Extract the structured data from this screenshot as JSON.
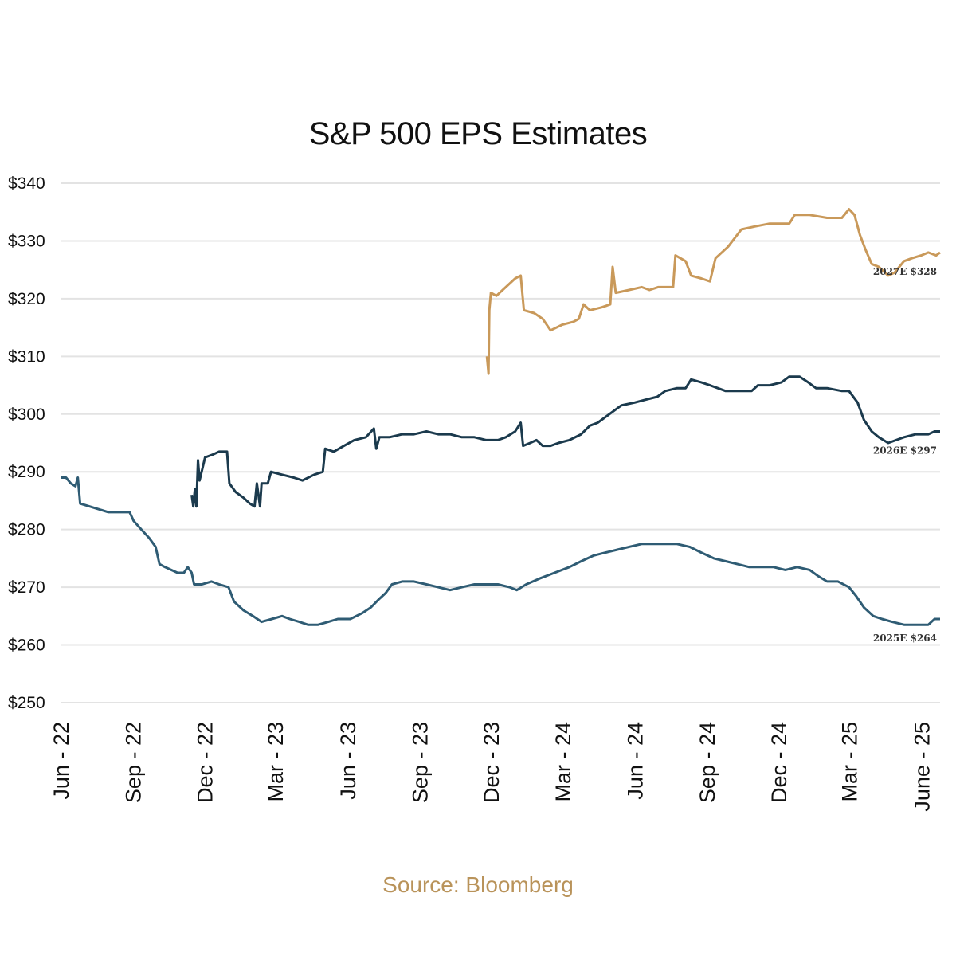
{
  "colors": {
    "series_2027": "#C9995A",
    "series_2026": "#1B3A4D",
    "series_2025": "#2F5C74",
    "grid": "#E3E3E3",
    "source": "#B9935A"
  },
  "chart_data": {
    "type": "line",
    "title": "S&P 500 EPS Estimates",
    "source": "Source: Bloomberg",
    "xlabel": "",
    "ylabel": "",
    "ylim": [
      250,
      340
    ],
    "xlim": [
      "2022-06-01",
      "2025-06-25"
    ],
    "y_ticks": [
      250,
      260,
      270,
      280,
      290,
      300,
      310,
      320,
      330,
      340
    ],
    "y_tick_labels": [
      "$250",
      "$260",
      "$270",
      "$280",
      "$290",
      "$300",
      "$310",
      "$320",
      "$330",
      "$340"
    ],
    "x_ticks": [
      "2022-06-01",
      "2022-09-01",
      "2022-12-01",
      "2023-03-01",
      "2023-06-01",
      "2023-09-01",
      "2023-12-01",
      "2024-03-01",
      "2024-06-01",
      "2024-09-01",
      "2024-12-01",
      "2025-03-01",
      "2025-06-01"
    ],
    "x_tick_labels": [
      "Jun - 22",
      "Sep - 22",
      "Dec - 22",
      "Mar - 23",
      "Jun - 23",
      "Sep - 23",
      "Dec - 23",
      "Mar - 24",
      "Jun - 24",
      "Sep - 24",
      "Dec - 24",
      "Mar - 25",
      "June - 25"
    ],
    "grid": true,
    "series": [
      {
        "label": "2027E $328",
        "color_key": "series_2027",
        "points": [
          [
            "2023-11-26",
            310
          ],
          [
            "2023-11-28",
            307
          ],
          [
            "2023-11-29",
            318
          ],
          [
            "2023-12-01",
            321
          ],
          [
            "2023-12-08",
            320.5
          ],
          [
            "2023-12-20",
            322
          ],
          [
            "2024-01-01",
            323.5
          ],
          [
            "2024-01-08",
            324
          ],
          [
            "2024-01-12",
            318
          ],
          [
            "2024-01-25",
            317.5
          ],
          [
            "2024-02-05",
            316.5
          ],
          [
            "2024-02-15",
            314.5
          ],
          [
            "2024-03-01",
            315.5
          ],
          [
            "2024-03-15",
            316
          ],
          [
            "2024-03-22",
            316.5
          ],
          [
            "2024-03-28",
            319
          ],
          [
            "2024-04-05",
            318
          ],
          [
            "2024-04-20",
            318.5
          ],
          [
            "2024-05-01",
            319
          ],
          [
            "2024-05-04",
            325.5
          ],
          [
            "2024-05-08",
            321
          ],
          [
            "2024-05-25",
            321.5
          ],
          [
            "2024-06-10",
            322
          ],
          [
            "2024-06-20",
            321.5
          ],
          [
            "2024-07-01",
            322
          ],
          [
            "2024-07-20",
            322
          ],
          [
            "2024-07-23",
            327.5
          ],
          [
            "2024-08-05",
            326.5
          ],
          [
            "2024-08-12",
            324
          ],
          [
            "2024-08-25",
            323.5
          ],
          [
            "2024-09-05",
            323
          ],
          [
            "2024-09-12",
            327
          ],
          [
            "2024-09-28",
            329
          ],
          [
            "2024-10-15",
            332
          ],
          [
            "2024-11-01",
            332.5
          ],
          [
            "2024-11-20",
            333
          ],
          [
            "2024-12-15",
            333
          ],
          [
            "2024-12-22",
            334.5
          ],
          [
            "2025-01-10",
            334.5
          ],
          [
            "2025-02-01",
            334
          ],
          [
            "2025-02-20",
            334
          ],
          [
            "2025-03-01",
            335.5
          ],
          [
            "2025-03-08",
            334.5
          ],
          [
            "2025-03-15",
            331
          ],
          [
            "2025-03-22",
            328.5
          ],
          [
            "2025-03-30",
            326
          ],
          [
            "2025-04-08",
            325.5
          ],
          [
            "2025-04-20",
            324
          ],
          [
            "2025-04-28",
            324.5
          ],
          [
            "2025-05-10",
            326.5
          ],
          [
            "2025-05-20",
            327
          ],
          [
            "2025-06-01",
            327.5
          ],
          [
            "2025-06-10",
            328
          ],
          [
            "2025-06-20",
            327.5
          ],
          [
            "2025-06-25",
            328
          ]
        ]
      },
      {
        "label": "2026E $297",
        "color_key": "series_2026",
        "points": [
          [
            "2022-11-15",
            286
          ],
          [
            "2022-11-17",
            284
          ],
          [
            "2022-11-19",
            287
          ],
          [
            "2022-11-21",
            284
          ],
          [
            "2022-11-23",
            292
          ],
          [
            "2022-11-25",
            288.5
          ],
          [
            "2022-12-02",
            292.5
          ],
          [
            "2022-12-12",
            293
          ],
          [
            "2022-12-20",
            293.5
          ],
          [
            "2022-12-30",
            293.5
          ],
          [
            "2023-01-02",
            288
          ],
          [
            "2023-01-10",
            286.5
          ],
          [
            "2023-01-20",
            285.5
          ],
          [
            "2023-01-28",
            284.5
          ],
          [
            "2023-02-03",
            284
          ],
          [
            "2023-02-06",
            288
          ],
          [
            "2023-02-10",
            284
          ],
          [
            "2023-02-12",
            288
          ],
          [
            "2023-02-20",
            288
          ],
          [
            "2023-02-24",
            290
          ],
          [
            "2023-03-10",
            289.5
          ],
          [
            "2023-03-25",
            289
          ],
          [
            "2023-04-05",
            288.5
          ],
          [
            "2023-04-20",
            289.5
          ],
          [
            "2023-05-01",
            290
          ],
          [
            "2023-05-04",
            294
          ],
          [
            "2023-05-15",
            293.5
          ],
          [
            "2023-05-28",
            294.5
          ],
          [
            "2023-06-10",
            295.5
          ],
          [
            "2023-06-25",
            296
          ],
          [
            "2023-07-05",
            297.5
          ],
          [
            "2023-07-08",
            294
          ],
          [
            "2023-07-12",
            296
          ],
          [
            "2023-07-25",
            296
          ],
          [
            "2023-08-10",
            296.5
          ],
          [
            "2023-08-25",
            296.5
          ],
          [
            "2023-09-10",
            297
          ],
          [
            "2023-09-25",
            296.5
          ],
          [
            "2023-10-10",
            296.5
          ],
          [
            "2023-10-25",
            296
          ],
          [
            "2023-11-10",
            296
          ],
          [
            "2023-11-25",
            295.5
          ],
          [
            "2023-12-10",
            295.5
          ],
          [
            "2023-12-20",
            296
          ],
          [
            "2024-01-01",
            297
          ],
          [
            "2024-01-08",
            298.5
          ],
          [
            "2024-01-11",
            294.5
          ],
          [
            "2024-01-20",
            295
          ],
          [
            "2024-01-28",
            295.5
          ],
          [
            "2024-02-05",
            294.5
          ],
          [
            "2024-02-15",
            294.5
          ],
          [
            "2024-02-25",
            295
          ],
          [
            "2024-03-10",
            295.5
          ],
          [
            "2024-03-25",
            296.5
          ],
          [
            "2024-04-05",
            298
          ],
          [
            "2024-04-15",
            298.5
          ],
          [
            "2024-04-25",
            299.5
          ],
          [
            "2024-05-05",
            300.5
          ],
          [
            "2024-05-15",
            301.5
          ],
          [
            "2024-06-01",
            302
          ],
          [
            "2024-06-15",
            302.5
          ],
          [
            "2024-06-30",
            303
          ],
          [
            "2024-07-10",
            304
          ],
          [
            "2024-07-25",
            304.5
          ],
          [
            "2024-08-05",
            304.5
          ],
          [
            "2024-08-12",
            306
          ],
          [
            "2024-08-25",
            305.5
          ],
          [
            "2024-09-05",
            305
          ],
          [
            "2024-09-15",
            304.5
          ],
          [
            "2024-09-25",
            304
          ],
          [
            "2024-10-15",
            304
          ],
          [
            "2024-10-28",
            304
          ],
          [
            "2024-11-05",
            305
          ],
          [
            "2024-11-20",
            305
          ],
          [
            "2024-12-05",
            305.5
          ],
          [
            "2024-12-15",
            306.5
          ],
          [
            "2024-12-28",
            306.5
          ],
          [
            "2025-01-08",
            305.5
          ],
          [
            "2025-01-18",
            304.5
          ],
          [
            "2025-02-01",
            304.5
          ],
          [
            "2025-02-20",
            304
          ],
          [
            "2025-03-01",
            304
          ],
          [
            "2025-03-12",
            302
          ],
          [
            "2025-03-20",
            299
          ],
          [
            "2025-03-30",
            297
          ],
          [
            "2025-04-08",
            296
          ],
          [
            "2025-04-20",
            295
          ],
          [
            "2025-04-30",
            295.5
          ],
          [
            "2025-05-10",
            296
          ],
          [
            "2025-05-25",
            296.5
          ],
          [
            "2025-06-10",
            296.5
          ],
          [
            "2025-06-18",
            297
          ],
          [
            "2025-06-25",
            297
          ]
        ]
      },
      {
        "label": "2025E $264",
        "color_key": "series_2025",
        "points": [
          [
            "2022-06-01",
            289
          ],
          [
            "2022-06-08",
            289
          ],
          [
            "2022-06-14",
            288
          ],
          [
            "2022-06-20",
            287.5
          ],
          [
            "2022-06-23",
            289
          ],
          [
            "2022-06-26",
            284.5
          ],
          [
            "2022-07-08",
            284
          ],
          [
            "2022-07-20",
            283.5
          ],
          [
            "2022-08-01",
            283
          ],
          [
            "2022-08-15",
            283
          ],
          [
            "2022-08-28",
            283
          ],
          [
            "2022-09-02",
            281.5
          ],
          [
            "2022-09-12",
            280
          ],
          [
            "2022-09-22",
            278.5
          ],
          [
            "2022-09-30",
            277
          ],
          [
            "2022-10-05",
            274
          ],
          [
            "2022-10-12",
            273.5
          ],
          [
            "2022-10-20",
            273
          ],
          [
            "2022-10-28",
            272.5
          ],
          [
            "2022-11-05",
            272.5
          ],
          [
            "2022-11-10",
            273.5
          ],
          [
            "2022-11-15",
            272.5
          ],
          [
            "2022-11-18",
            270.5
          ],
          [
            "2022-11-28",
            270.5
          ],
          [
            "2022-12-10",
            271
          ],
          [
            "2022-12-20",
            270.5
          ],
          [
            "2023-01-01",
            270
          ],
          [
            "2023-01-08",
            267.5
          ],
          [
            "2023-01-20",
            266
          ],
          [
            "2023-02-01",
            265
          ],
          [
            "2023-02-12",
            264
          ],
          [
            "2023-02-25",
            264.5
          ],
          [
            "2023-03-10",
            265
          ],
          [
            "2023-03-20",
            264.5
          ],
          [
            "2023-04-01",
            264
          ],
          [
            "2023-04-12",
            263.5
          ],
          [
            "2023-04-25",
            263.5
          ],
          [
            "2023-05-08",
            264
          ],
          [
            "2023-05-20",
            264.5
          ],
          [
            "2023-06-05",
            264.5
          ],
          [
            "2023-06-20",
            265.5
          ],
          [
            "2023-07-01",
            266.5
          ],
          [
            "2023-07-12",
            268
          ],
          [
            "2023-07-20",
            269
          ],
          [
            "2023-07-28",
            270.5
          ],
          [
            "2023-08-10",
            271
          ],
          [
            "2023-08-25",
            271
          ],
          [
            "2023-09-10",
            270.5
          ],
          [
            "2023-09-25",
            270
          ],
          [
            "2023-10-10",
            269.5
          ],
          [
            "2023-10-25",
            270
          ],
          [
            "2023-11-10",
            270.5
          ],
          [
            "2023-11-25",
            270.5
          ],
          [
            "2023-12-10",
            270.5
          ],
          [
            "2023-12-25",
            270
          ],
          [
            "2024-01-03",
            269.5
          ],
          [
            "2024-01-15",
            270.5
          ],
          [
            "2024-02-01",
            271.5
          ],
          [
            "2024-02-20",
            272.5
          ],
          [
            "2024-03-10",
            273.5
          ],
          [
            "2024-03-25",
            274.5
          ],
          [
            "2024-04-10",
            275.5
          ],
          [
            "2024-04-25",
            276
          ],
          [
            "2024-05-10",
            276.5
          ],
          [
            "2024-05-25",
            277
          ],
          [
            "2024-06-10",
            277.5
          ],
          [
            "2024-06-25",
            277.5
          ],
          [
            "2024-07-10",
            277.5
          ],
          [
            "2024-07-25",
            277.5
          ],
          [
            "2024-08-10",
            277
          ],
          [
            "2024-08-25",
            276
          ],
          [
            "2024-09-10",
            275
          ],
          [
            "2024-09-25",
            274.5
          ],
          [
            "2024-10-10",
            274
          ],
          [
            "2024-10-25",
            273.5
          ],
          [
            "2024-11-10",
            273.5
          ],
          [
            "2024-11-25",
            273.5
          ],
          [
            "2024-12-10",
            273
          ],
          [
            "2024-12-25",
            273.5
          ],
          [
            "2025-01-10",
            273
          ],
          [
            "2025-01-20",
            272
          ],
          [
            "2025-02-01",
            271
          ],
          [
            "2025-02-15",
            271
          ],
          [
            "2025-03-01",
            270
          ],
          [
            "2025-03-10",
            268.5
          ],
          [
            "2025-03-20",
            266.5
          ],
          [
            "2025-04-01",
            265
          ],
          [
            "2025-04-12",
            264.5
          ],
          [
            "2025-04-25",
            264
          ],
          [
            "2025-05-10",
            263.5
          ],
          [
            "2025-05-25",
            263.5
          ],
          [
            "2025-06-10",
            263.5
          ],
          [
            "2025-06-18",
            264.5
          ],
          [
            "2025-06-25",
            264.5
          ]
        ]
      }
    ]
  }
}
